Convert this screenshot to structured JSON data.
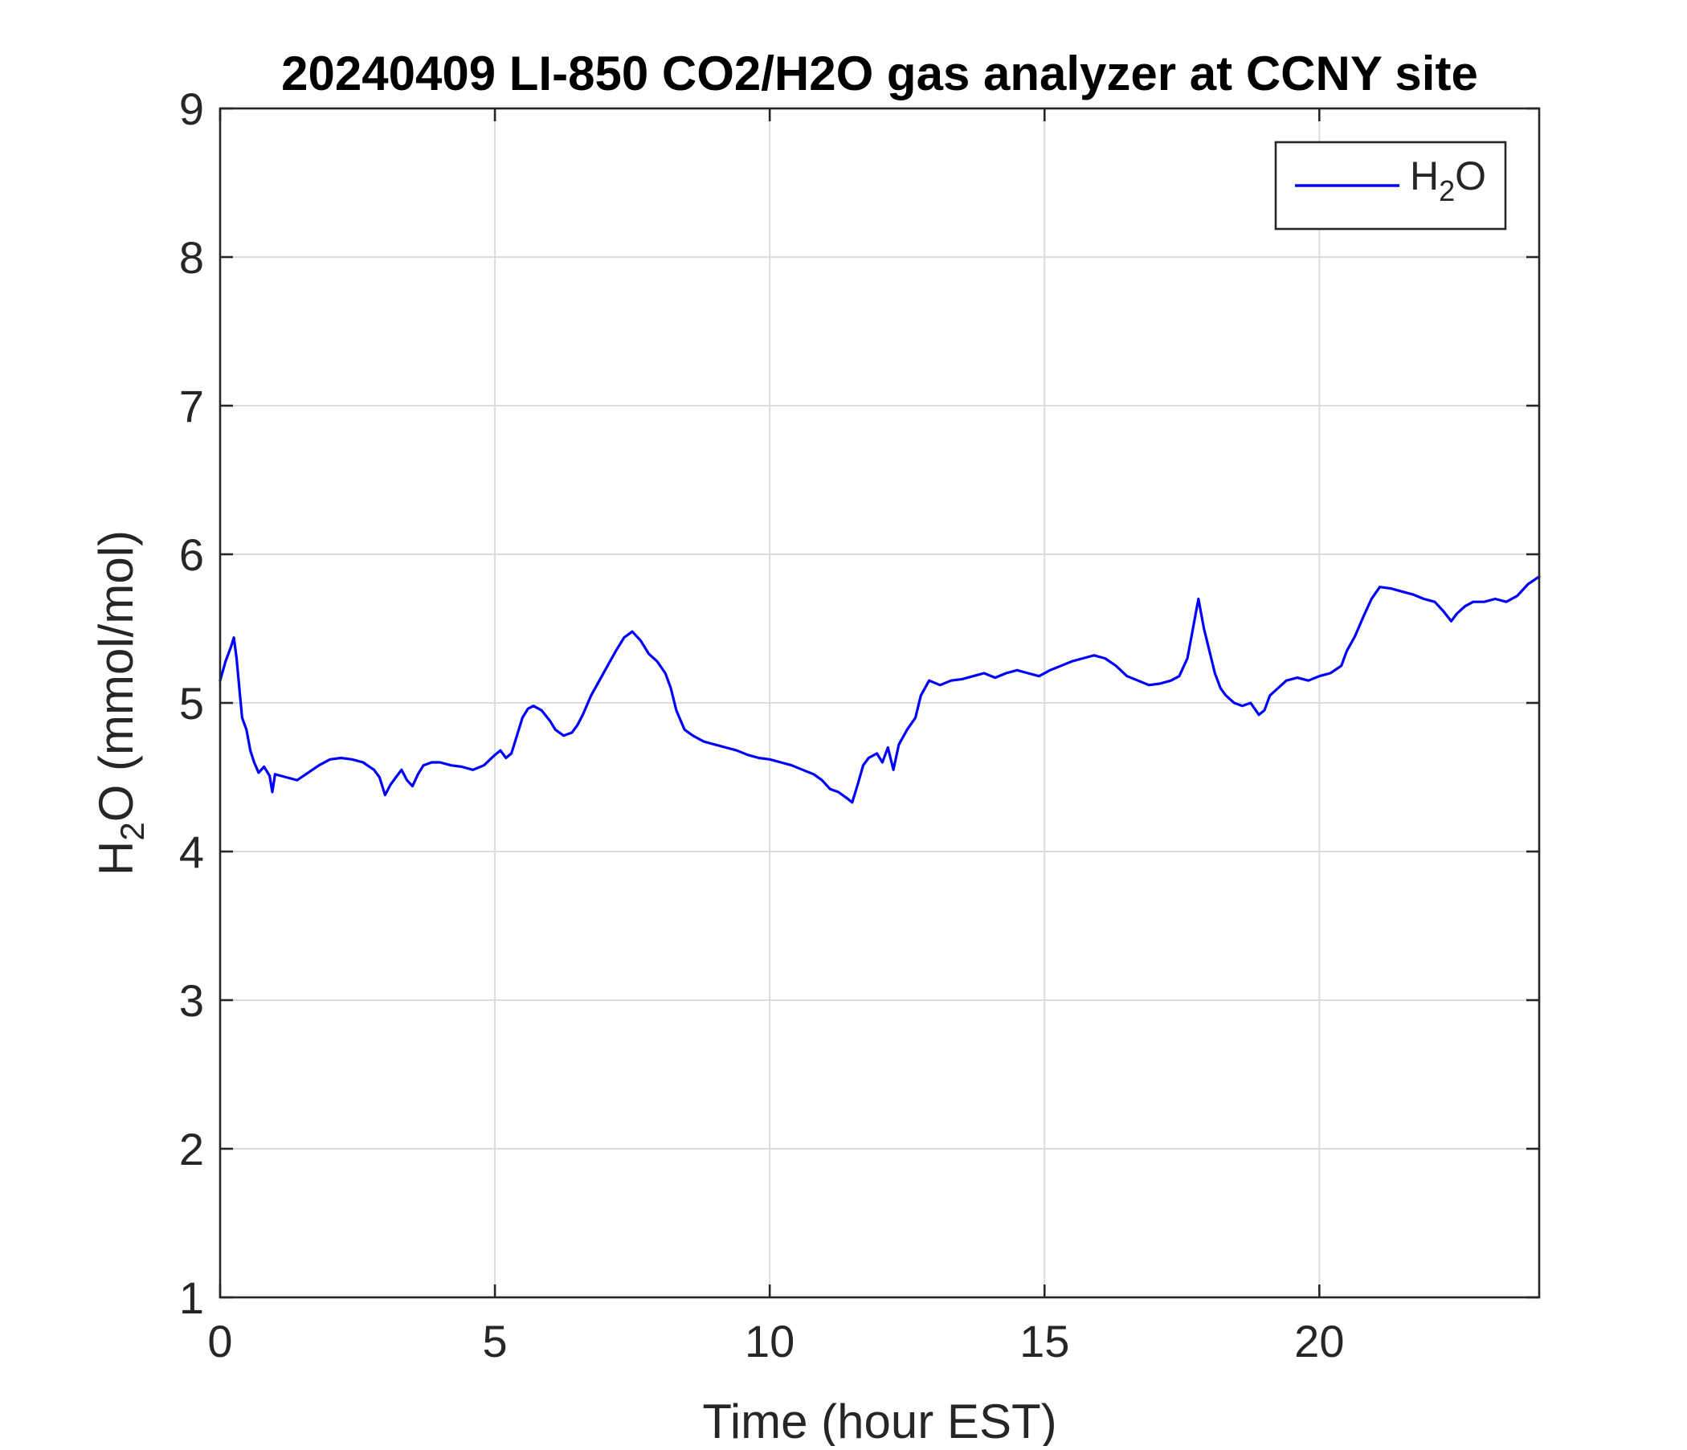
{
  "chart_data": {
    "type": "line",
    "title": "20240409 LI-850 CO2/H2O gas analyzer at CCNY site",
    "xlabel": "Time (hour EST)",
    "ylabel": {
      "base": "H",
      "sub": "2",
      "rest": "O (mmol/mol)"
    },
    "xlim": [
      0,
      24
    ],
    "ylim": [
      1,
      9
    ],
    "xticks": [
      0,
      5,
      10,
      15,
      20
    ],
    "yticks": [
      1,
      2,
      3,
      4,
      5,
      6,
      7,
      8,
      9
    ],
    "grid": true,
    "legend_position": "top-right",
    "series": [
      {
        "name": "H2O",
        "legend": {
          "base": "H",
          "sub": "2",
          "rest": "O"
        },
        "color": "#0000ff",
        "points": [
          [
            0.0,
            5.15
          ],
          [
            0.1,
            5.28
          ],
          [
            0.2,
            5.38
          ],
          [
            0.25,
            5.44
          ],
          [
            0.3,
            5.3
          ],
          [
            0.35,
            5.1
          ],
          [
            0.4,
            4.9
          ],
          [
            0.48,
            4.82
          ],
          [
            0.55,
            4.68
          ],
          [
            0.62,
            4.6
          ],
          [
            0.7,
            4.53
          ],
          [
            0.8,
            4.57
          ],
          [
            0.9,
            4.51
          ],
          [
            0.95,
            4.4
          ],
          [
            1.0,
            4.52
          ],
          [
            1.2,
            4.5
          ],
          [
            1.4,
            4.48
          ],
          [
            1.6,
            4.53
          ],
          [
            1.8,
            4.58
          ],
          [
            2.0,
            4.62
          ],
          [
            2.2,
            4.63
          ],
          [
            2.4,
            4.62
          ],
          [
            2.6,
            4.6
          ],
          [
            2.8,
            4.55
          ],
          [
            2.9,
            4.5
          ],
          [
            3.0,
            4.38
          ],
          [
            3.1,
            4.45
          ],
          [
            3.2,
            4.5
          ],
          [
            3.3,
            4.55
          ],
          [
            3.4,
            4.48
          ],
          [
            3.5,
            4.44
          ],
          [
            3.6,
            4.52
          ],
          [
            3.7,
            4.58
          ],
          [
            3.85,
            4.6
          ],
          [
            4.0,
            4.6
          ],
          [
            4.2,
            4.58
          ],
          [
            4.4,
            4.57
          ],
          [
            4.6,
            4.55
          ],
          [
            4.8,
            4.58
          ],
          [
            5.0,
            4.65
          ],
          [
            5.1,
            4.68
          ],
          [
            5.2,
            4.63
          ],
          [
            5.3,
            4.66
          ],
          [
            5.4,
            4.78
          ],
          [
            5.5,
            4.9
          ],
          [
            5.6,
            4.96
          ],
          [
            5.7,
            4.98
          ],
          [
            5.85,
            4.95
          ],
          [
            6.0,
            4.88
          ],
          [
            6.1,
            4.82
          ],
          [
            6.25,
            4.78
          ],
          [
            6.4,
            4.8
          ],
          [
            6.5,
            4.85
          ],
          [
            6.6,
            4.92
          ],
          [
            6.75,
            5.05
          ],
          [
            6.9,
            5.15
          ],
          [
            7.05,
            5.25
          ],
          [
            7.2,
            5.35
          ],
          [
            7.35,
            5.44
          ],
          [
            7.5,
            5.48
          ],
          [
            7.65,
            5.42
          ],
          [
            7.8,
            5.33
          ],
          [
            7.95,
            5.28
          ],
          [
            8.1,
            5.2
          ],
          [
            8.2,
            5.1
          ],
          [
            8.3,
            4.95
          ],
          [
            8.45,
            4.82
          ],
          [
            8.6,
            4.78
          ],
          [
            8.8,
            4.74
          ],
          [
            9.0,
            4.72
          ],
          [
            9.2,
            4.7
          ],
          [
            9.4,
            4.68
          ],
          [
            9.6,
            4.65
          ],
          [
            9.8,
            4.63
          ],
          [
            10.0,
            4.62
          ],
          [
            10.2,
            4.6
          ],
          [
            10.4,
            4.58
          ],
          [
            10.6,
            4.55
          ],
          [
            10.8,
            4.52
          ],
          [
            10.95,
            4.48
          ],
          [
            11.1,
            4.42
          ],
          [
            11.25,
            4.4
          ],
          [
            11.4,
            4.36
          ],
          [
            11.5,
            4.33
          ],
          [
            11.6,
            4.45
          ],
          [
            11.7,
            4.58
          ],
          [
            11.8,
            4.63
          ],
          [
            11.95,
            4.66
          ],
          [
            12.05,
            4.6
          ],
          [
            12.15,
            4.7
          ],
          [
            12.25,
            4.55
          ],
          [
            12.35,
            4.72
          ],
          [
            12.5,
            4.82
          ],
          [
            12.65,
            4.9
          ],
          [
            12.75,
            5.05
          ],
          [
            12.9,
            5.15
          ],
          [
            13.1,
            5.12
          ],
          [
            13.3,
            5.15
          ],
          [
            13.5,
            5.16
          ],
          [
            13.7,
            5.18
          ],
          [
            13.9,
            5.2
          ],
          [
            14.1,
            5.17
          ],
          [
            14.3,
            5.2
          ],
          [
            14.5,
            5.22
          ],
          [
            14.7,
            5.2
          ],
          [
            14.9,
            5.18
          ],
          [
            15.1,
            5.22
          ],
          [
            15.3,
            5.25
          ],
          [
            15.5,
            5.28
          ],
          [
            15.7,
            5.3
          ],
          [
            15.9,
            5.32
          ],
          [
            16.1,
            5.3
          ],
          [
            16.3,
            5.25
          ],
          [
            16.5,
            5.18
          ],
          [
            16.7,
            5.15
          ],
          [
            16.9,
            5.12
          ],
          [
            17.1,
            5.13
          ],
          [
            17.3,
            5.15
          ],
          [
            17.45,
            5.18
          ],
          [
            17.6,
            5.3
          ],
          [
            17.7,
            5.5
          ],
          [
            17.8,
            5.7
          ],
          [
            17.9,
            5.5
          ],
          [
            18.0,
            5.35
          ],
          [
            18.1,
            5.2
          ],
          [
            18.2,
            5.1
          ],
          [
            18.3,
            5.05
          ],
          [
            18.45,
            5.0
          ],
          [
            18.6,
            4.98
          ],
          [
            18.75,
            5.0
          ],
          [
            18.9,
            4.92
          ],
          [
            19.0,
            4.95
          ],
          [
            19.1,
            5.05
          ],
          [
            19.25,
            5.1
          ],
          [
            19.4,
            5.15
          ],
          [
            19.6,
            5.17
          ],
          [
            19.8,
            5.15
          ],
          [
            20.0,
            5.18
          ],
          [
            20.2,
            5.2
          ],
          [
            20.4,
            5.25
          ],
          [
            20.5,
            5.35
          ],
          [
            20.65,
            5.45
          ],
          [
            20.8,
            5.58
          ],
          [
            20.95,
            5.7
          ],
          [
            21.1,
            5.78
          ],
          [
            21.3,
            5.77
          ],
          [
            21.5,
            5.75
          ],
          [
            21.7,
            5.73
          ],
          [
            21.9,
            5.7
          ],
          [
            22.1,
            5.68
          ],
          [
            22.25,
            5.62
          ],
          [
            22.4,
            5.55
          ],
          [
            22.5,
            5.6
          ],
          [
            22.65,
            5.65
          ],
          [
            22.8,
            5.68
          ],
          [
            23.0,
            5.68
          ],
          [
            23.2,
            5.7
          ],
          [
            23.4,
            5.68
          ],
          [
            23.6,
            5.72
          ],
          [
            23.8,
            5.8
          ],
          [
            24.0,
            5.85
          ]
        ]
      }
    ]
  }
}
